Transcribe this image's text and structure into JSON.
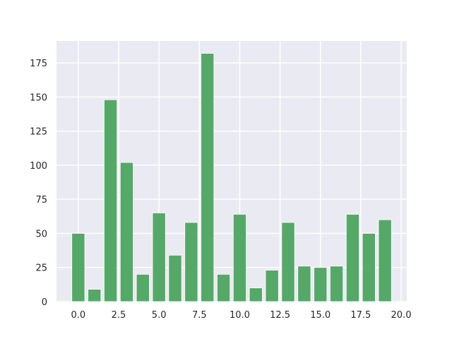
{
  "chart_data": {
    "type": "bar",
    "x": [
      0,
      1,
      2,
      3,
      4,
      5,
      6,
      7,
      8,
      9,
      10,
      11,
      12,
      13,
      14,
      15,
      16,
      17,
      18,
      19
    ],
    "values": [
      50,
      9,
      148,
      102,
      20,
      65,
      34,
      58,
      182,
      20,
      64,
      10,
      23,
      58,
      26,
      25,
      26,
      64,
      50,
      60
    ],
    "xlim": [
      -1.35,
      20.35
    ],
    "ylim": [
      0,
      191.1
    ],
    "x_ticks": [
      0,
      2.5,
      5,
      7.5,
      10,
      12.5,
      15,
      17.5,
      20
    ],
    "x_tick_labels": [
      "0.0",
      "2.5",
      "5.0",
      "7.5",
      "10.0",
      "12.5",
      "15.0",
      "17.5",
      "20.0"
    ],
    "y_ticks": [
      0,
      25,
      50,
      75,
      100,
      125,
      150,
      175
    ],
    "y_tick_labels": [
      "0",
      "25",
      "50",
      "75",
      "100",
      "125",
      "150",
      "175"
    ],
    "grid": true,
    "title": "",
    "xlabel": "",
    "ylabel": "",
    "colors": {
      "bar": "#55a868",
      "plot_bg": "#eaeaf2",
      "grid": "#ffffff",
      "text": "#262626"
    }
  }
}
